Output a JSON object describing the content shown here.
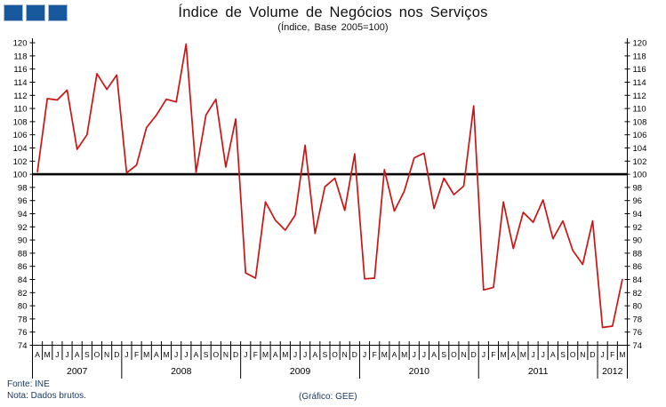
{
  "logo": {
    "color": "#17599c",
    "square_count": 3
  },
  "chart_data": {
    "type": "line",
    "title": "Índice de Volume de Negócios nos Serviços",
    "subtitle": "(Índice, Base 2005=100)",
    "ylabel": "",
    "xlabel": "",
    "ylim": [
      74,
      120
    ],
    "ytick_step": 2,
    "grid": false,
    "legend": "none",
    "refline": 100,
    "line_color": "#cc1414",
    "refline_color": "#000000",
    "axis_color": "#000000",
    "years": [
      {
        "label": "2007",
        "months": [
          "A",
          "M",
          "J",
          "J",
          "A",
          "S",
          "O",
          "N",
          "D"
        ]
      },
      {
        "label": "2008",
        "months": [
          "J",
          "F",
          "M",
          "A",
          "M",
          "J",
          "J",
          "A",
          "S",
          "O",
          "N",
          "D"
        ]
      },
      {
        "label": "2009",
        "months": [
          "J",
          "F",
          "M",
          "A",
          "M",
          "J",
          "J",
          "A",
          "S",
          "O",
          "N",
          "D"
        ]
      },
      {
        "label": "2010",
        "months": [
          "J",
          "F",
          "M",
          "A",
          "M",
          "J",
          "J",
          "A",
          "S",
          "O",
          "N",
          "D"
        ]
      },
      {
        "label": "2011",
        "months": [
          "J",
          "F",
          "M",
          "A",
          "M",
          "J",
          "J",
          "A",
          "S",
          "O",
          "N",
          "D"
        ]
      },
      {
        "label": "2012",
        "months": [
          "J",
          "F",
          "M"
        ]
      }
    ],
    "values": [
      100.4,
      111.5,
      111.3,
      112.8,
      103.8,
      106.0,
      115.3,
      112.9,
      115.1,
      100.2,
      101.4,
      107.1,
      109.0,
      111.4,
      111.0,
      119.8,
      100.3,
      109.0,
      111.4,
      101.1,
      108.4,
      85.0,
      84.2,
      95.8,
      93.0,
      91.5,
      93.8,
      104.4,
      91.0,
      98.1,
      99.4,
      94.5,
      103.1,
      84.1,
      84.2,
      100.7,
      94.4,
      97.4,
      102.5,
      103.2,
      94.8,
      99.4,
      96.9,
      98.2,
      110.4,
      82.4,
      82.8,
      95.8,
      88.7,
      94.2,
      92.7,
      96.1,
      90.2,
      92.9,
      88.4,
      86.3,
      92.9,
      76.7,
      76.9,
      84.0
    ]
  },
  "footer": {
    "fonte": "Fonte: INE",
    "nota": "Nota: Dados brutos.",
    "credit": "(Gráfico: GEE)"
  }
}
